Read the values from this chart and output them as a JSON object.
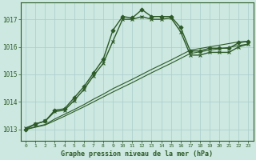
{
  "title": "Graphe pression niveau de la mer (hPa)",
  "background_color": "#cce8e0",
  "plot_bg_color": "#cce8e0",
  "grid_color": "#aacccc",
  "line_color": "#2d5a27",
  "x_ticks": [
    0,
    1,
    2,
    3,
    4,
    5,
    6,
    7,
    8,
    9,
    10,
    11,
    12,
    13,
    14,
    15,
    16,
    17,
    18,
    19,
    20,
    21,
    22,
    23
  ],
  "ylim": [
    1012.6,
    1017.6
  ],
  "yticks": [
    1013,
    1014,
    1015,
    1016,
    1017
  ],
  "series": [
    {
      "x": [
        0,
        1,
        2,
        3,
        4,
        5,
        6,
        7,
        8,
        9,
        10,
        11,
        12,
        13,
        14,
        15,
        16,
        17,
        18,
        19,
        20,
        21,
        22,
        23
      ],
      "y": [
        1013.0,
        1013.2,
        1013.3,
        1013.7,
        1013.75,
        1014.15,
        1014.55,
        1015.05,
        1015.55,
        1016.6,
        1017.1,
        1017.05,
        1017.35,
        1017.1,
        1017.1,
        1017.1,
        1016.7,
        1015.85,
        1015.85,
        1015.95,
        1015.95,
        1015.95,
        1016.15,
        1016.2
      ],
      "marker": "D",
      "markersize": 2.5,
      "linewidth": 1.0,
      "markerfilled": true
    },
    {
      "x": [
        0,
        1,
        2,
        3,
        4,
        5,
        6,
        7,
        8,
        9,
        10,
        11,
        12,
        13,
        14,
        15,
        16,
        17,
        18,
        19,
        20,
        21,
        22,
        23
      ],
      "y": [
        1013.05,
        1013.2,
        1013.3,
        1013.65,
        1013.7,
        1014.05,
        1014.45,
        1014.95,
        1015.4,
        1016.2,
        1017.0,
        1017.0,
        1017.1,
        1017.0,
        1017.0,
        1017.05,
        1016.55,
        1015.7,
        1015.7,
        1015.8,
        1015.8,
        1015.8,
        1016.0,
        1016.1
      ],
      "marker": "x",
      "markersize": 3.5,
      "linewidth": 1.0,
      "markerfilled": false
    },
    {
      "x": [
        0,
        1,
        2,
        3,
        4,
        5,
        6,
        7,
        8,
        9,
        10,
        11,
        12,
        13,
        14,
        15,
        16,
        17,
        18,
        19,
        20,
        21,
        22,
        23
      ],
      "y": [
        1013.0,
        1013.1,
        1013.18,
        1013.38,
        1013.55,
        1013.72,
        1013.9,
        1014.1,
        1014.28,
        1014.48,
        1014.65,
        1014.82,
        1015.0,
        1015.18,
        1015.35,
        1015.52,
        1015.7,
        1015.88,
        1015.94,
        1016.0,
        1016.06,
        1016.12,
        1016.18,
        1016.2
      ],
      "marker": null,
      "markersize": 0,
      "linewidth": 0.8,
      "markerfilled": false
    },
    {
      "x": [
        0,
        1,
        2,
        3,
        4,
        5,
        6,
        7,
        8,
        9,
        10,
        11,
        12,
        13,
        14,
        15,
        16,
        17,
        18,
        19,
        20,
        21,
        22,
        23
      ],
      "y": [
        1013.0,
        1013.08,
        1013.16,
        1013.32,
        1013.48,
        1013.65,
        1013.82,
        1014.0,
        1014.18,
        1014.36,
        1014.53,
        1014.7,
        1014.88,
        1015.06,
        1015.23,
        1015.4,
        1015.58,
        1015.76,
        1015.82,
        1015.88,
        1015.93,
        1015.98,
        1016.05,
        1016.1
      ],
      "marker": null,
      "markersize": 0,
      "linewidth": 0.8,
      "markerfilled": false
    }
  ]
}
